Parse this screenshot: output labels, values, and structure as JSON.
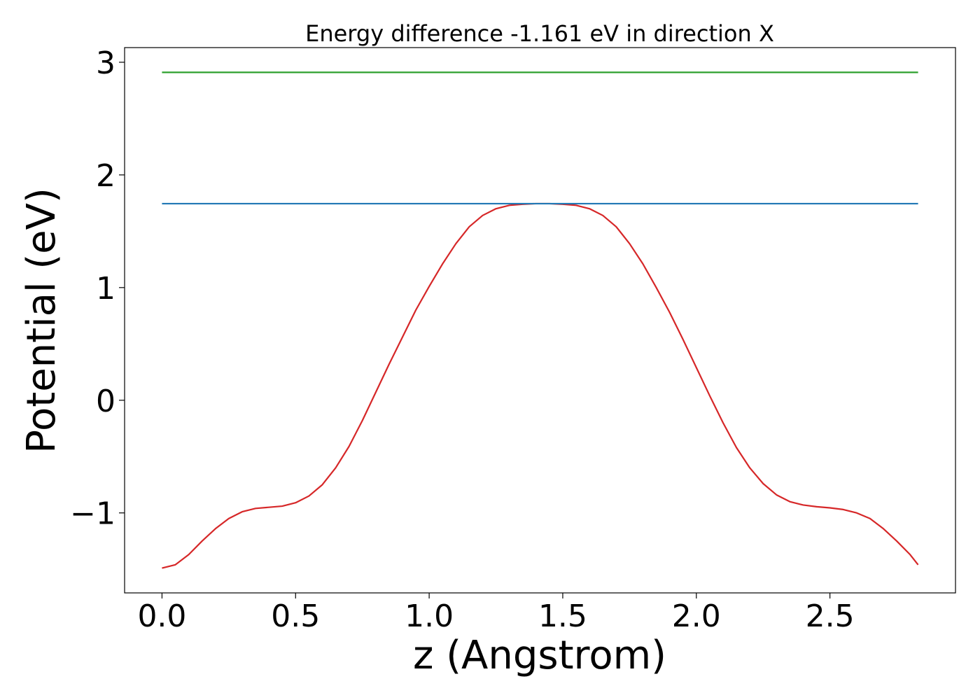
{
  "chart_data": {
    "type": "line",
    "title": "Energy difference -1.161 eV in direction X",
    "xlabel": "z (Angstrom)",
    "ylabel": "Potential (eV)",
    "xlim": [
      -0.14,
      2.97
    ],
    "ylim": [
      -1.71,
      3.13
    ],
    "xticks": [
      0.0,
      0.5,
      1.0,
      1.5,
      2.0,
      2.5
    ],
    "xtick_labels": [
      "0.0",
      "0.5",
      "1.0",
      "1.5",
      "2.0",
      "2.5"
    ],
    "yticks": [
      -1,
      0,
      1,
      2,
      3
    ],
    "ytick_labels": [
      "−1",
      "0",
      "1",
      "2",
      "3"
    ],
    "grid": false,
    "series": [
      {
        "color": "#d62728",
        "x": [
          0.0,
          0.05,
          0.1,
          0.15,
          0.2,
          0.25,
          0.3,
          0.35,
          0.4,
          0.45,
          0.5,
          0.55,
          0.6,
          0.65,
          0.7,
          0.75,
          0.8,
          0.85,
          0.9,
          0.95,
          1.0,
          1.05,
          1.1,
          1.15,
          1.2,
          1.25,
          1.3,
          1.35,
          1.4,
          1.45,
          1.5,
          1.55,
          1.6,
          1.65,
          1.7,
          1.75,
          1.8,
          1.85,
          1.9,
          1.95,
          2.0,
          2.05,
          2.1,
          2.15,
          2.2,
          2.25,
          2.3,
          2.35,
          2.4,
          2.45,
          2.5,
          2.55,
          2.6,
          2.65,
          2.7,
          2.75,
          2.8,
          2.83
        ],
        "values": [
          -1.49,
          -1.46,
          -1.37,
          -1.25,
          -1.14,
          -1.05,
          -0.99,
          -0.96,
          -0.95,
          -0.94,
          -0.91,
          -0.85,
          -0.75,
          -0.6,
          -0.41,
          -0.18,
          0.07,
          0.32,
          0.56,
          0.8,
          1.01,
          1.21,
          1.39,
          1.54,
          1.64,
          1.7,
          1.73,
          1.74,
          1.745,
          1.745,
          1.74,
          1.73,
          1.7,
          1.64,
          1.54,
          1.39,
          1.21,
          1.0,
          0.78,
          0.54,
          0.29,
          0.04,
          -0.2,
          -0.42,
          -0.6,
          -0.74,
          -0.84,
          -0.9,
          -0.93,
          -0.945,
          -0.955,
          -0.97,
          -1.0,
          -1.05,
          -1.14,
          -1.25,
          -1.37,
          -1.46
        ]
      },
      {
        "color": "#1f77b4",
        "x": [
          0.0,
          2.83
        ],
        "values": [
          1.745,
          1.745
        ]
      },
      {
        "color": "#2ca02c",
        "x": [
          0.0,
          2.83
        ],
        "values": [
          2.91,
          2.91
        ]
      }
    ]
  }
}
